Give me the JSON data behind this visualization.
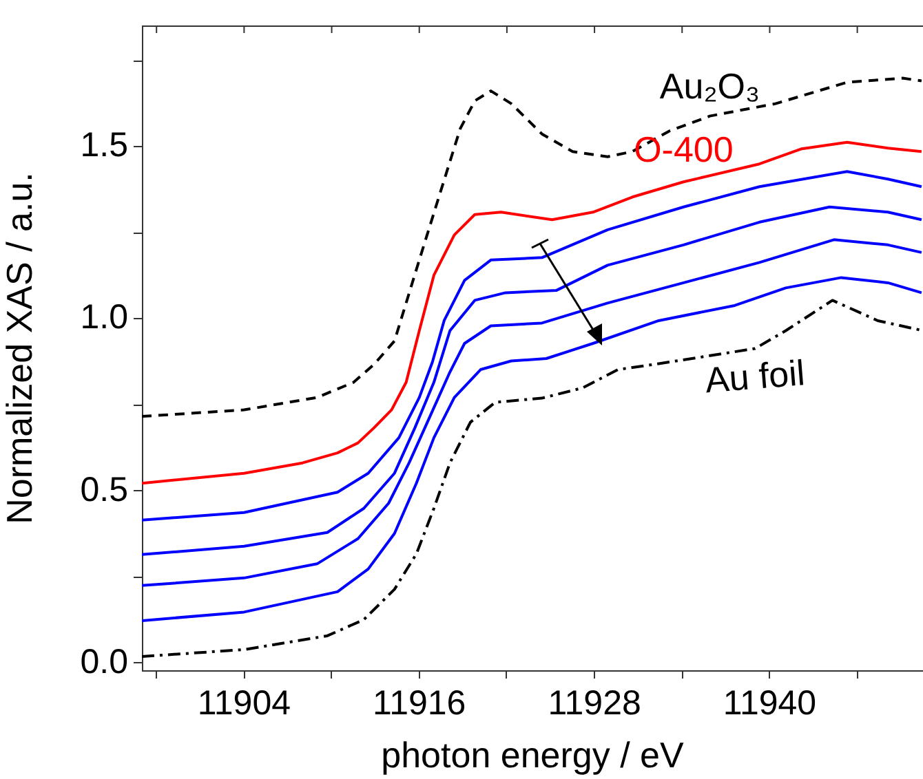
{
  "chart_data": {
    "type": "line",
    "xlabel": "photon energy / eV",
    "ylabel": "Normalized XAS / a.u.",
    "xlim": [
      11897,
      11950.5
    ],
    "ylim": [
      -0.02,
      1.85
    ],
    "xticks": [
      {
        "value": 11898,
        "label": null
      },
      11904,
      {
        "value": 11910,
        "label": null
      },
      11916,
      {
        "value": 11922,
        "label": null
      },
      11928,
      {
        "value": 11934,
        "label": null
      },
      11940,
      {
        "value": 11946,
        "label": null
      }
    ],
    "yticks": [
      {
        "value": 0,
        "label": "0.0"
      },
      {
        "value": 0.25,
        "label": null
      },
      0.5,
      {
        "value": 0.75,
        "label": null
      },
      {
        "value": 1,
        "label": "1.0"
      },
      {
        "value": 1.25,
        "label": null
      },
      1.5,
      {
        "value": 1.75,
        "label": null
      }
    ],
    "grid": false,
    "legend": false,
    "marker": "none",
    "series": [
      {
        "name": "Au₂O₃",
        "color": "#000000",
        "line_style": "dashed",
        "x": [
          11897,
          11904,
          11909,
          11911.5,
          11912.9,
          11914.3,
          11916,
          11917.4,
          11918.8,
          11919.8,
          11920.9,
          11922.3,
          11924.4,
          11926.5,
          11928.9,
          11930.6,
          11933.1,
          11935.9,
          11940.4,
          11945.3,
          11949.1,
          11950.4
        ],
        "values": [
          0.717,
          0.736,
          0.772,
          0.816,
          0.868,
          0.936,
          1.171,
          1.362,
          1.552,
          1.633,
          1.662,
          1.625,
          1.537,
          1.486,
          1.471,
          1.486,
          1.545,
          1.589,
          1.625,
          1.687,
          1.699,
          1.691
        ]
      },
      {
        "name": "O-400",
        "color": "#ff0000",
        "line_style": "solid",
        "x": [
          11897,
          11904,
          11908,
          11910.4,
          11911.8,
          11912.9,
          11914.1,
          11915.1,
          11916,
          11917,
          11918.4,
          11919.8,
          11921.6,
          11925.1,
          11927.9,
          11930.6,
          11934.1,
          11939.3,
          11942.2,
          11945.3,
          11948.1,
          11950.4
        ],
        "values": [
          0.523,
          0.552,
          0.582,
          0.611,
          0.64,
          0.684,
          0.736,
          0.816,
          0.966,
          1.127,
          1.244,
          1.303,
          1.31,
          1.288,
          1.31,
          1.354,
          1.398,
          1.45,
          1.494,
          1.513,
          1.496,
          1.486
        ]
      },
      {
        "color": "#0000ff",
        "line_style": "solid",
        "x": [
          11897,
          11904,
          11910.4,
          11912.5,
          11914.6,
          11916,
          11916.9,
          11917.7,
          11919.1,
          11920.9,
          11924.4,
          11928.9,
          11934.1,
          11939.3,
          11945.3,
          11948.1,
          11950.4
        ],
        "values": [
          0.416,
          0.438,
          0.497,
          0.552,
          0.655,
          0.772,
          0.875,
          0.995,
          1.112,
          1.171,
          1.178,
          1.259,
          1.325,
          1.384,
          1.428,
          1.406,
          1.384
        ]
      },
      {
        "color": "#0000ff",
        "line_style": "solid",
        "x": [
          11897,
          11904,
          11909.7,
          11912.2,
          11914.3,
          11915.7,
          11917,
          11918.1,
          11919.8,
          11921.9,
          11925.4,
          11928.9,
          11934.1,
          11939.3,
          11944.1,
          11948.1,
          11950.4
        ],
        "values": [
          0.316,
          0.34,
          0.38,
          0.45,
          0.552,
          0.684,
          0.816,
          0.966,
          1.054,
          1.076,
          1.083,
          1.156,
          1.215,
          1.281,
          1.325,
          1.31,
          1.288
        ]
      },
      {
        "color": "#0000ff",
        "line_style": "solid",
        "x": [
          11897,
          11904,
          11909,
          11911.8,
          11913.9,
          11915.3,
          11916.7,
          11918.1,
          11919.1,
          11920.9,
          11924.4,
          11928.9,
          11934.1,
          11939.3,
          11944.4,
          11948.1,
          11950.4
        ],
        "values": [
          0.226,
          0.248,
          0.289,
          0.362,
          0.465,
          0.582,
          0.714,
          0.846,
          0.929,
          0.98,
          0.988,
          1.046,
          1.105,
          1.164,
          1.23,
          1.215,
          1.193
        ]
      },
      {
        "color": "#0000ff",
        "line_style": "solid",
        "x": [
          11897,
          11904,
          11910.4,
          11912.5,
          11914.3,
          11915.8,
          11917,
          11918.4,
          11920.2,
          11922.3,
          11924.7,
          11927.9,
          11932.4,
          11937.6,
          11941.1,
          11944.9,
          11948.1,
          11950.4
        ],
        "values": [
          0.124,
          0.149,
          0.208,
          0.274,
          0.377,
          0.523,
          0.655,
          0.772,
          0.853,
          0.878,
          0.885,
          0.929,
          0.995,
          1.039,
          1.09,
          1.12,
          1.105,
          1.076
        ]
      },
      {
        "name": "Au foil",
        "color": "#000000",
        "line_style": "dotted",
        "x": [
          11897,
          11904,
          11909.7,
          11912.2,
          11914.3,
          11915.8,
          11917,
          11918.1,
          11919.5,
          11921.2,
          11924.4,
          11927.2,
          11929.6,
          11932.4,
          11939,
          11941.1,
          11944.3,
          11947.4,
          11950.5
        ],
        "values": [
          0.02,
          0.04,
          0.08,
          0.127,
          0.215,
          0.318,
          0.45,
          0.582,
          0.7,
          0.758,
          0.77,
          0.8,
          0.853,
          0.87,
          0.914,
          0.966,
          1.054,
          0.995,
          0.966
        ]
      }
    ]
  }
}
